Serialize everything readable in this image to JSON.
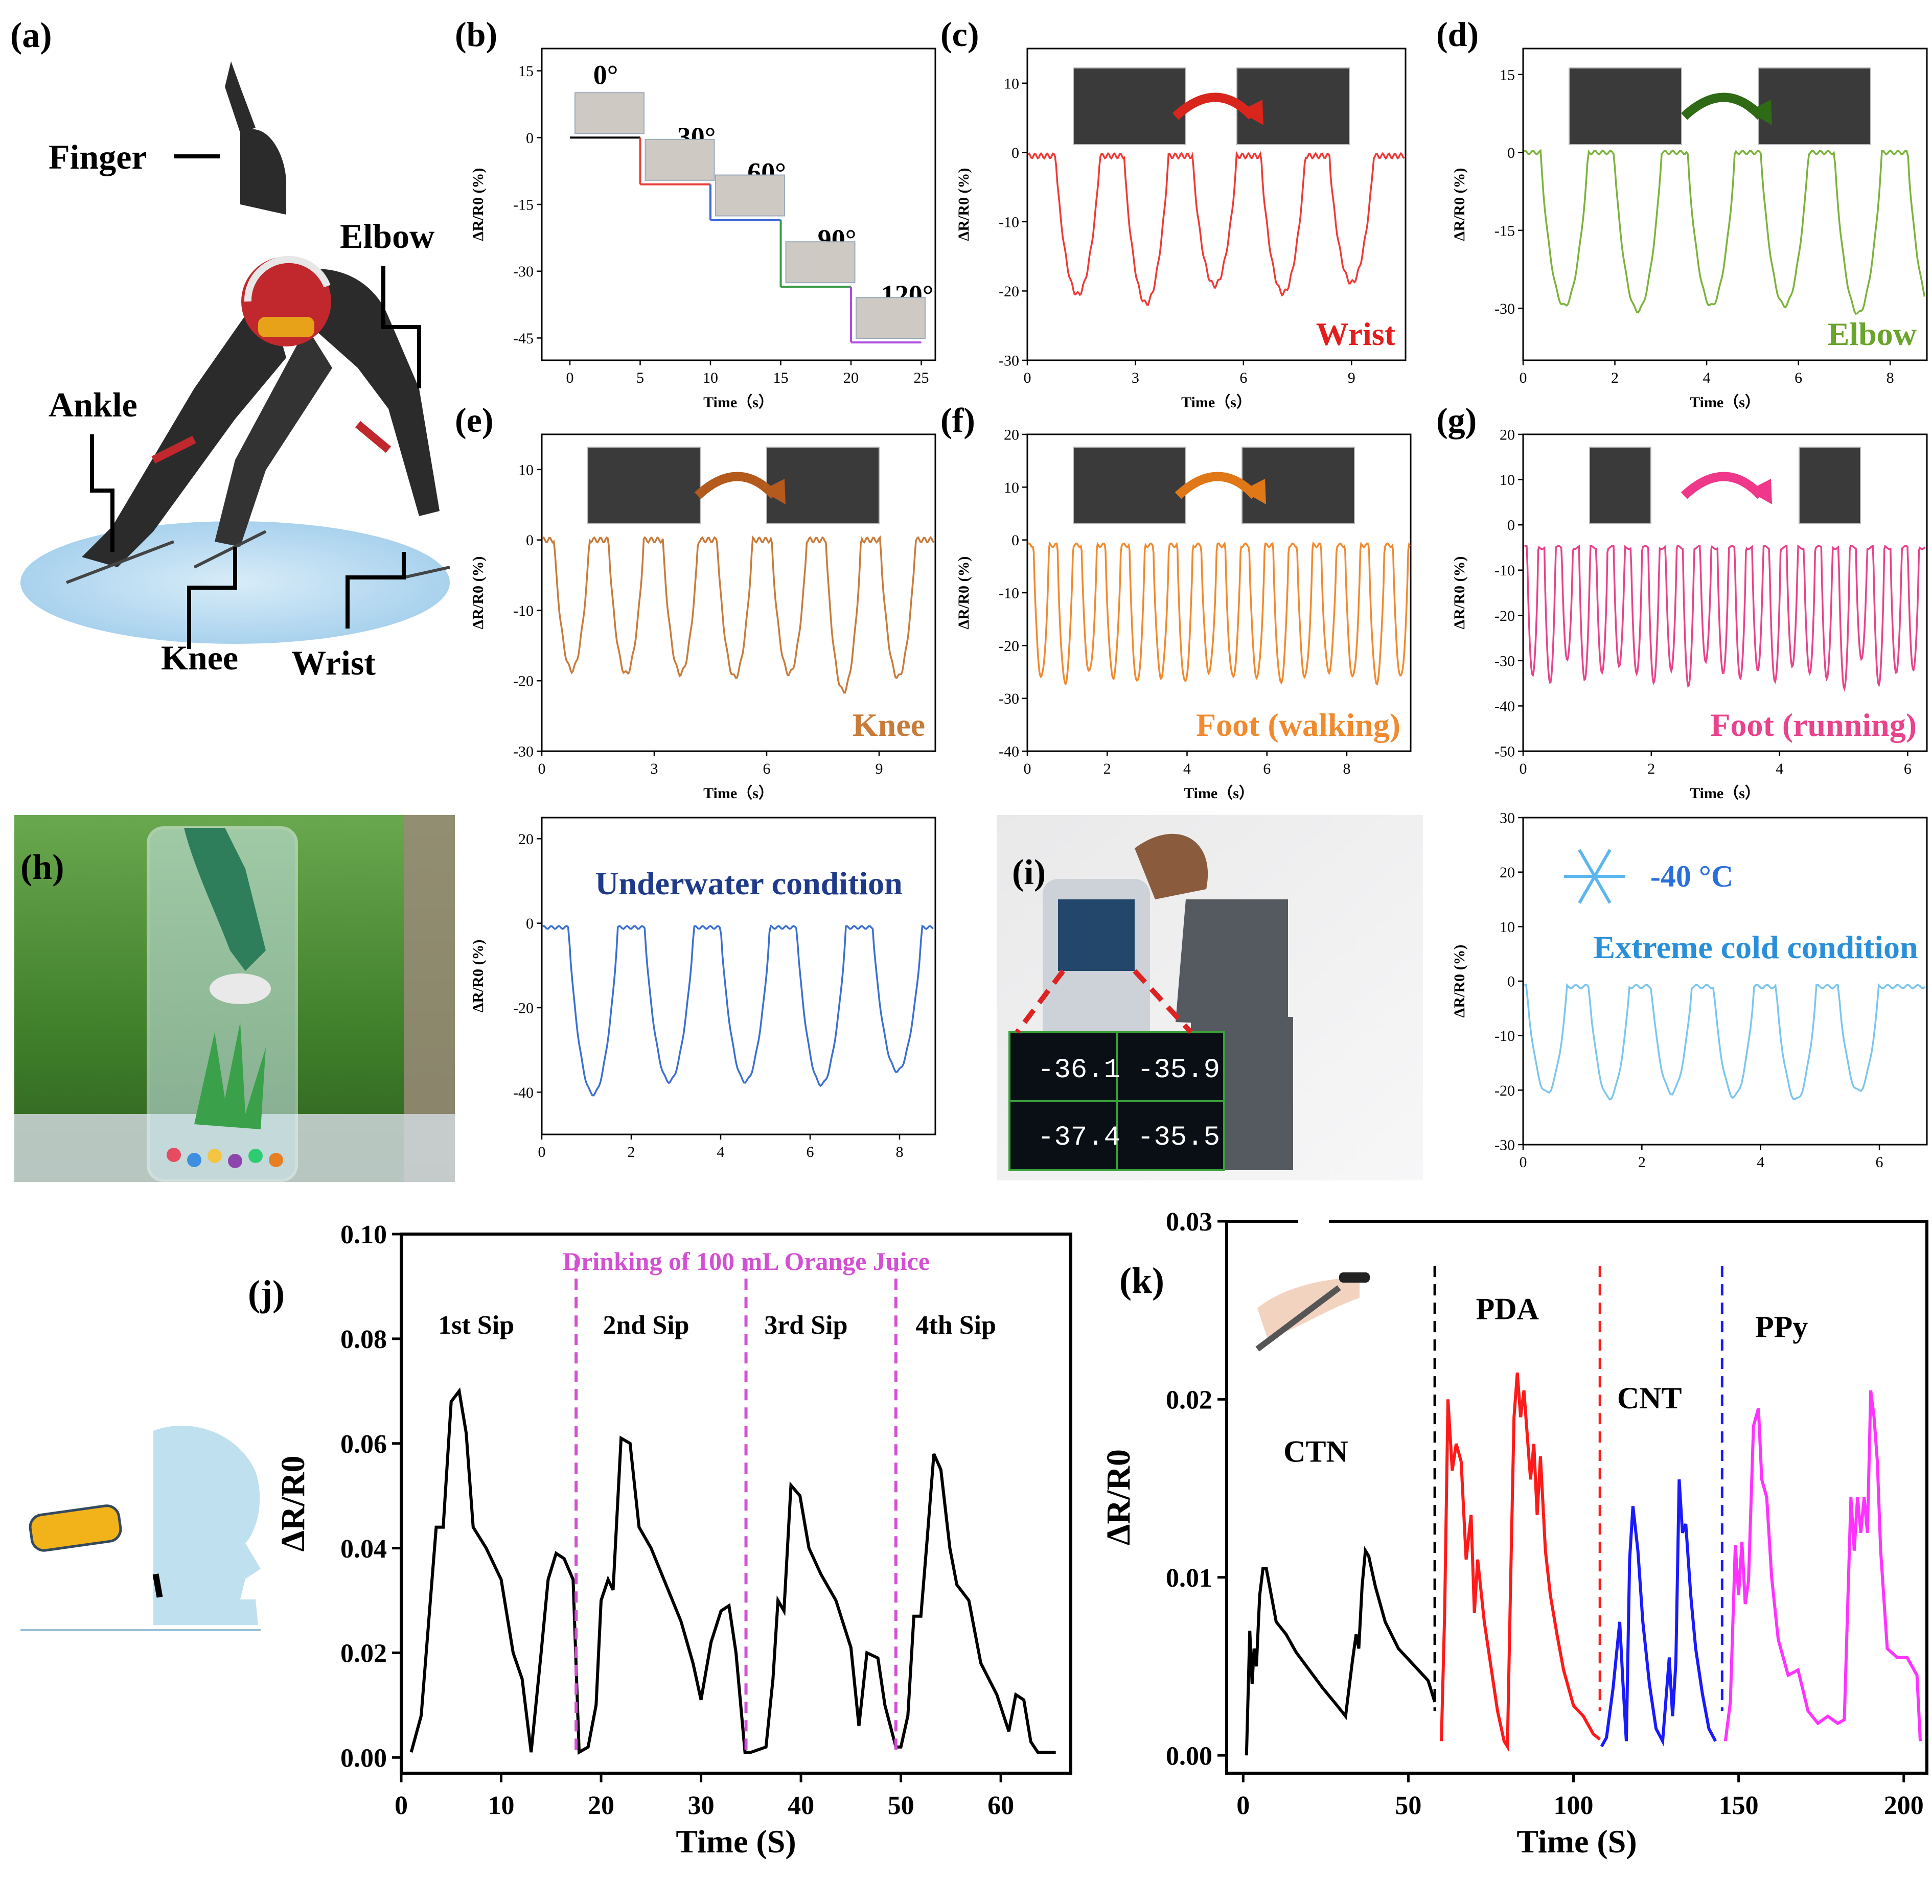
{
  "panel_a": {
    "letter": "(a)",
    "labels": [
      "Finger",
      "Elbow",
      "Ankle",
      "Knee",
      "Wrist"
    ]
  },
  "panel_h": {
    "letter": "(h)"
  },
  "panel_i": {
    "letter": "(i)",
    "readings": [
      "-36.1",
      "-35.9",
      "-37.4",
      "-35.5"
    ]
  },
  "colors": {
    "b_series": [
      "#000000",
      "#e8413a",
      "#3a66d6",
      "#3a9a44",
      "#b04ee0"
    ],
    "wrist": "#ee3a36",
    "elbow": "#7bb33a",
    "knee": "#c97b3a",
    "walking": "#f18a2e",
    "running": "#e8438c",
    "underwater": "#3b6fd1",
    "cold": "#7cc6ee",
    "drink": "#000000",
    "drink_div": "#d34fd3",
    "ctn": "#000000",
    "pda": "#ff1a1a",
    "cnt": "#1a1aff",
    "ppy": "#ff33ff"
  },
  "chart_data": [
    {
      "id": "b",
      "type": "line",
      "letter": "(b)",
      "xlabel": "Time（s）",
      "ylabel": "ΔR/R0 (%)",
      "xlim": [
        -2,
        26
      ],
      "ylim": [
        -50,
        20
      ],
      "xticks": [
        "0",
        "5",
        "10",
        "15",
        "20",
        "25"
      ],
      "yticks": [
        "15",
        "0",
        "-15",
        "-30",
        "-45"
      ],
      "annotations": [
        "0°",
        "30°",
        "60°",
        "90°",
        "120°"
      ],
      "series": [
        {
          "x": [
            0,
            5
          ],
          "y": [
            0,
            0
          ]
        },
        {
          "x": [
            5,
            10
          ],
          "y": [
            -10.5,
            -10.5
          ]
        },
        {
          "x": [
            10,
            15
          ],
          "y": [
            -18.5,
            -18.5
          ]
        },
        {
          "x": [
            15,
            20
          ],
          "y": [
            -33.5,
            -33.5
          ]
        },
        {
          "x": [
            20,
            25
          ],
          "y": [
            -46,
            -46
          ]
        }
      ]
    },
    {
      "id": "c",
      "type": "line",
      "letter": "(c)",
      "title": "Wrist",
      "xlabel": "Time（s）",
      "ylabel": "ΔR/R0 (%)",
      "xlim": [
        0,
        10.5
      ],
      "ylim": [
        -30,
        15
      ],
      "xticks": [
        "0",
        "3",
        "6",
        "9"
      ],
      "yticks": [
        "10",
        "0",
        "-10",
        "-20",
        "-30"
      ],
      "period": 1.9,
      "first_peak": 1.4,
      "peaks": [
        -20.5,
        -21.8,
        -19.2,
        -20.3,
        -18.8
      ],
      "baseline": -0.5
    },
    {
      "id": "d",
      "type": "line",
      "letter": "(d)",
      "title": "Elbow",
      "xlabel": "Time（s）",
      "ylabel": "ΔR/R0 (%)",
      "xlim": [
        0,
        8.8
      ],
      "ylim": [
        -40,
        20
      ],
      "xticks": [
        "0",
        "2",
        "4",
        "6",
        "8"
      ],
      "yticks": [
        "15",
        "0",
        "-15",
        "-30"
      ],
      "period": 1.6,
      "first_peak": 0.9,
      "peaks": [
        -29.5,
        -30.5,
        -29.5,
        -29.5,
        -31,
        -29.8
      ],
      "baseline": 0
    },
    {
      "id": "e",
      "type": "line",
      "letter": "(e)",
      "title": "Knee",
      "xlabel": "Time（s）",
      "ylabel": "ΔR/R0 (%)",
      "xlim": [
        0,
        10.5
      ],
      "ylim": [
        -30,
        15
      ],
      "xticks": [
        "0",
        "3",
        "6",
        "9"
      ],
      "yticks": [
        "10",
        "0",
        "-10",
        "-20",
        "-30"
      ],
      "period": 1.45,
      "first_peak": 0.8,
      "peaks": [
        -18.5,
        -19,
        -19,
        -19.5,
        -19,
        -21.5,
        -19.5,
        -21.3
      ],
      "baseline": 0
    },
    {
      "id": "f",
      "type": "line",
      "letter": "(f)",
      "title": "Foot (walking)",
      "xlabel": "Time（s）",
      "ylabel": "ΔR/R0 (%)",
      "xlim": [
        0,
        9.6
      ],
      "ylim": [
        -40,
        20
      ],
      "xticks": [
        "0",
        "2",
        "4",
        "6",
        "8"
      ],
      "yticks": [
        "20",
        "10",
        "0",
        "-10",
        "-20",
        "-30",
        "-40"
      ],
      "period": 0.6,
      "first_peak": 0.35,
      "peaks": [
        -26,
        -27,
        -25,
        -26,
        -27,
        -26,
        -27,
        -25,
        -26,
        -26,
        -27,
        -26,
        -25,
        -26,
        -27,
        -26
      ],
      "baseline": -1
    },
    {
      "id": "g",
      "type": "line",
      "letter": "(g)",
      "title": "Foot (running)",
      "xlabel": "Time（s）",
      "ylabel": "ΔR/R0 (%)",
      "xlim": [
        0,
        6.3
      ],
      "ylim": [
        -50,
        20
      ],
      "xticks": [
        "0",
        "2",
        "4",
        "6"
      ],
      "yticks": [
        "20",
        "10",
        "0",
        "-10",
        "-20",
        "-30",
        "-40",
        "-50"
      ],
      "period": 0.27,
      "first_peak": 0.15,
      "peaks": [
        -33,
        -35,
        -30,
        -34,
        -33,
        -31,
        -33,
        -35,
        -32,
        -36,
        -30,
        -33,
        -34,
        -32,
        -35,
        -31,
        -33,
        -34,
        -36,
        -30,
        -35,
        -33,
        -32
      ],
      "baseline": -5
    },
    {
      "id": "h",
      "type": "line",
      "title": "Underwater condition",
      "ylabel": "ΔR/R0 (%)",
      "xlim": [
        0,
        8.8
      ],
      "ylim": [
        -50,
        25
      ],
      "xticks": [
        "0",
        "2",
        "4",
        "6",
        "8"
      ],
      "yticks": [
        "20",
        "0",
        "-20",
        "-40"
      ],
      "period": 1.7,
      "first_peak": 1.15,
      "peaks": [
        -40.5,
        -37.5,
        -37.5,
        -38.2,
        -35
      ],
      "baseline": -1
    },
    {
      "id": "i",
      "type": "line",
      "title": "Extreme cold condition",
      "subtitle": "-40 °C",
      "ylabel": "ΔR/R0 (%)",
      "xlim": [
        0,
        6.8
      ],
      "ylim": [
        -30,
        30
      ],
      "xticks": [
        "0",
        "2",
        "4",
        "6"
      ],
      "yticks": [
        "30",
        "20",
        "10",
        "0",
        "-10",
        "-20",
        "-30"
      ],
      "period": 1.05,
      "first_peak": 0.4,
      "peaks": [
        -20.5,
        -21.5,
        -20.5,
        -21.2,
        -21.8,
        -20.2
      ],
      "baseline": -1
    },
    {
      "id": "j",
      "type": "line",
      "letter": "(j)",
      "title": "Drinking of 100 mL Orange Juice",
      "xlabel": "Time (S)",
      "ylabel": "ΔR/R0",
      "xlim": [
        0,
        67
      ],
      "ylim": [
        -0.003,
        0.1
      ],
      "xticks": [
        "0",
        "10",
        "20",
        "30",
        "40",
        "50",
        "60"
      ],
      "yticks": [
        "0.00",
        "0.02",
        "0.04",
        "0.06",
        "0.08",
        "0.10"
      ],
      "annotations": [
        "1st Sip",
        "2nd Sip",
        "3rd Sip",
        "4th Sip"
      ],
      "dividers": [
        17.5,
        34.5,
        49.5
      ],
      "x": [
        1,
        2,
        3,
        3.5,
        4.2,
        5,
        5.8,
        6.5,
        7.2,
        8.5,
        10,
        11.2,
        12.1,
        13,
        14,
        14.7,
        15.5,
        16.3,
        17.2,
        17.8,
        18.7,
        19.5,
        20,
        20.7,
        21.2,
        22,
        22.9,
        23.8,
        25,
        26.5,
        28,
        29.2,
        30,
        31,
        32,
        32.8,
        33.5,
        34.4,
        35,
        36.5,
        37.2,
        37.7,
        38.3,
        39,
        39.9,
        40.8,
        42,
        43.5,
        45,
        45.8,
        46.6,
        47.7,
        48.4,
        49.5,
        50,
        50.7,
        51.3,
        52,
        52.6,
        53.3,
        54,
        54.9,
        55.6,
        56.8,
        58,
        59.6,
        60.8,
        61.5,
        62.3,
        63,
        63.7,
        64.5,
        65.5
      ],
      "y": [
        0.001,
        0.008,
        0.032,
        0.044,
        0.044,
        0.068,
        0.07,
        0.062,
        0.044,
        0.04,
        0.034,
        0.02,
        0.015,
        0.001,
        0.02,
        0.034,
        0.039,
        0.038,
        0.034,
        0.001,
        0.002,
        0.01,
        0.03,
        0.034,
        0.032,
        0.061,
        0.06,
        0.044,
        0.04,
        0.033,
        0.026,
        0.018,
        0.011,
        0.022,
        0.028,
        0.029,
        0.02,
        0.001,
        0.001,
        0.002,
        0.015,
        0.03,
        0.028,
        0.052,
        0.05,
        0.04,
        0.035,
        0.03,
        0.021,
        0.006,
        0.02,
        0.019,
        0.01,
        0.002,
        0.002,
        0.008,
        0.027,
        0.027,
        0.041,
        0.058,
        0.055,
        0.04,
        0.033,
        0.03,
        0.018,
        0.012,
        0.005,
        0.012,
        0.011,
        0.003,
        0.001,
        0.001,
        0.001
      ]
    },
    {
      "id": "k",
      "type": "line",
      "letter": "(k)",
      "xlabel": "Time (S)",
      "ylabel": "ΔR/R0",
      "xlim": [
        -5,
        207
      ],
      "ylim": [
        -0.001,
        0.03
      ],
      "xticks": [
        "0",
        "50",
        "100",
        "150",
        "200"
      ],
      "yticks": [
        "0.00",
        "0.01",
        "0.02",
        "0.03"
      ],
      "dividers": [
        58,
        108,
        145
      ],
      "series": [
        {
          "name": "CTN",
          "x": [
            1,
            2,
            2.7,
            3.3,
            4,
            5,
            6,
            7,
            8.5,
            10,
            13,
            16,
            20,
            24,
            28,
            31,
            33,
            34.2,
            35,
            36,
            37,
            38,
            40,
            43,
            47,
            52,
            56,
            58
          ],
          "y": [
            0,
            0.007,
            0.004,
            0.006,
            0.005,
            0.009,
            0.0105,
            0.0105,
            0.009,
            0.0075,
            0.0068,
            0.0058,
            0.0048,
            0.0038,
            0.0029,
            0.0022,
            0.0052,
            0.0068,
            0.006,
            0.0095,
            0.0115,
            0.0112,
            0.0095,
            0.0075,
            0.006,
            0.005,
            0.0042,
            0.003
          ]
        },
        {
          "name": "PDA",
          "x": [
            60,
            61,
            62,
            63.3,
            64.5,
            66,
            67.5,
            69,
            70,
            71,
            73,
            75,
            77,
            79,
            80,
            81,
            82,
            83,
            84,
            85,
            86,
            87,
            88,
            89,
            90,
            91.5,
            93,
            95,
            97,
            100,
            103,
            106,
            108
          ],
          "y": [
            0.0008,
            0.008,
            0.02,
            0.016,
            0.0175,
            0.0165,
            0.011,
            0.0135,
            0.008,
            0.011,
            0.0075,
            0.005,
            0.0025,
            0.0008,
            0.0005,
            0.01,
            0.019,
            0.0215,
            0.019,
            0.0205,
            0.018,
            0.0155,
            0.0175,
            0.0135,
            0.0168,
            0.0115,
            0.009,
            0.0068,
            0.0048,
            0.0028,
            0.0022,
            0.0012,
            0.0009
          ]
        },
        {
          "name": "CNT",
          "x": [
            108.5,
            110,
            112,
            114,
            115,
            116,
            117,
            118,
            119.5,
            121,
            123,
            125,
            127,
            129,
            130,
            131,
            132,
            133,
            134,
            135.5,
            137,
            139,
            141,
            143
          ],
          "y": [
            0.0005,
            0.001,
            0.0038,
            0.0075,
            0.004,
            0.0008,
            0.011,
            0.014,
            0.0115,
            0.0075,
            0.004,
            0.0015,
            0.0008,
            0.0055,
            0.0022,
            0.0052,
            0.0155,
            0.0125,
            0.013,
            0.009,
            0.006,
            0.0035,
            0.0015,
            0.0008
          ]
        },
        {
          "name": "PPy",
          "x": [
            146,
            147.5,
            149,
            150,
            151,
            152,
            153,
            154.5,
            156,
            157,
            158.5,
            160,
            162,
            165,
            168,
            171,
            174,
            177,
            180,
            182,
            184,
            185,
            186,
            187,
            188,
            189,
            190,
            191,
            192,
            193,
            195,
            198,
            201,
            204,
            205
          ],
          "y": [
            0.0008,
            0.003,
            0.0118,
            0.009,
            0.012,
            0.0085,
            0.0098,
            0.0185,
            0.0195,
            0.0155,
            0.0145,
            0.01,
            0.0065,
            0.0045,
            0.0048,
            0.0025,
            0.0018,
            0.0022,
            0.0018,
            0.002,
            0.0145,
            0.0115,
            0.0145,
            0.0125,
            0.0145,
            0.0125,
            0.0205,
            0.019,
            0.0165,
            0.0115,
            0.006,
            0.0055,
            0.0055,
            0.0045,
            0.0008
          ]
        }
      ],
      "annotations": [
        "CTN",
        "PDA",
        "CNT",
        "PPy"
      ]
    }
  ]
}
